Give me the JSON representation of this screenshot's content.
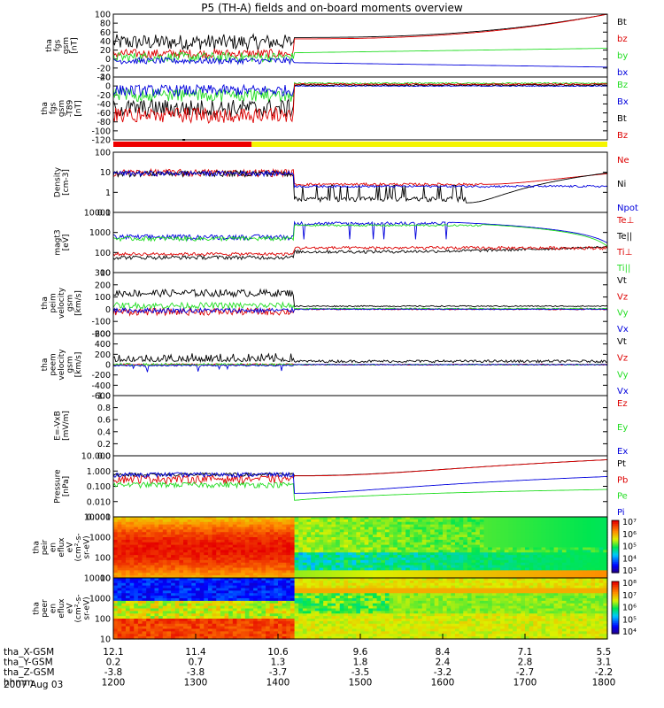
{
  "title": "P5 (TH-A) fields and on-board moments overview",
  "colors": {
    "black": "#000000",
    "red": "#dd0000",
    "green": "#22dd22",
    "blue": "#0000dd",
    "yellow": "#f5f500"
  },
  "chart_data": [
    {
      "type": "line",
      "id": "fgs",
      "ylabel": [
        "tha",
        "fgs",
        "gsm",
        "[nT]"
      ],
      "ylim": [
        -40,
        100
      ],
      "yticks": [
        "100",
        "80",
        "60",
        "40",
        "20",
        "0",
        "-20",
        "-40"
      ],
      "series": [
        {
          "name": "Bt",
          "color": "black"
        },
        {
          "name": "bz",
          "color": "red"
        },
        {
          "name": "by",
          "color": "green"
        },
        {
          "name": "bx",
          "color": "blue"
        }
      ]
    },
    {
      "type": "line",
      "id": "fgs_t89",
      "ylabel": [
        "tha",
        "fgs",
        "gsm",
        "-T89",
        "[nT]"
      ],
      "ylim": [
        -120,
        20
      ],
      "yticks": [
        "20",
        "0",
        "-20",
        "-40",
        "-60",
        "-80",
        "-100",
        "-120"
      ],
      "series": [
        {
          "name": "Bz",
          "color": "green"
        },
        {
          "name": "Bx",
          "color": "blue"
        },
        {
          "name": "Bt",
          "color": "black"
        },
        {
          "name": "Bz",
          "color": "red"
        }
      ]
    },
    {
      "type": "line",
      "id": "density",
      "ylabel": [
        "Density",
        "[cm-3]"
      ],
      "log": true,
      "ylim": [
        0.1,
        100
      ],
      "yticks": [
        "100",
        "10",
        "1",
        "0.1"
      ],
      "series": [
        {
          "name": "Ne",
          "color": "red"
        },
        {
          "name": "Ni",
          "color": "black"
        },
        {
          "name": "Npot",
          "color": "blue"
        }
      ]
    },
    {
      "type": "line",
      "id": "temp",
      "ylabel": [
        "magt3",
        "[eV]"
      ],
      "log": true,
      "ylim": [
        10,
        10000
      ],
      "yticks": [
        "10000",
        "1000",
        "100",
        "10"
      ],
      "series": [
        {
          "name": "Te⊥",
          "color": "red"
        },
        {
          "name": "Te||",
          "color": "black"
        },
        {
          "name": "Ti⊥",
          "color": "red"
        },
        {
          "name": "Ti||",
          "color": "green"
        }
      ]
    },
    {
      "type": "line",
      "id": "peim_v",
      "ylabel": [
        "tha",
        "peim",
        "velocity",
        "gsm",
        "[km/s]"
      ],
      "ylim": [
        -200,
        300
      ],
      "yticks": [
        "300",
        "200",
        "100",
        "0",
        "-100",
        "-200"
      ],
      "series": [
        {
          "name": "Vt",
          "color": "black"
        },
        {
          "name": "Vz",
          "color": "red"
        },
        {
          "name": "Vy",
          "color": "green"
        },
        {
          "name": "Vx",
          "color": "blue"
        }
      ]
    },
    {
      "type": "line",
      "id": "peem_v",
      "ylabel": [
        "tha",
        "peem",
        "velocity",
        "gsm",
        "[km/s]"
      ],
      "ylim": [
        -600,
        600
      ],
      "yticks": [
        "600",
        "400",
        "200",
        "0",
        "-200",
        "-400",
        "-600"
      ],
      "series": [
        {
          "name": "Vt",
          "color": "black"
        },
        {
          "name": "Vz",
          "color": "red"
        },
        {
          "name": "Vy",
          "color": "green"
        },
        {
          "name": "Vx",
          "color": "blue"
        }
      ]
    },
    {
      "type": "line",
      "id": "efield",
      "ylabel": [
        "E=-VxB",
        "[mV/m]"
      ],
      "ylim": [
        0,
        1
      ],
      "yticks": [
        "1.0",
        "0.8",
        "0.6",
        "0.4",
        "0.2",
        "0.0"
      ],
      "series": [
        {
          "name": "Ez",
          "color": "red"
        },
        {
          "name": "Ey",
          "color": "green"
        },
        {
          "name": "Ex",
          "color": "blue"
        }
      ]
    },
    {
      "type": "line",
      "id": "pressure",
      "ylabel": [
        "Pressure",
        "[nPa]"
      ],
      "log": true,
      "ylim": [
        0.001,
        10
      ],
      "yticks": [
        "10.000",
        "1.000",
        "0.100",
        "0.010",
        "0.001"
      ],
      "series": [
        {
          "name": "Pt",
          "color": "black"
        },
        {
          "name": "Pb",
          "color": "red"
        },
        {
          "name": "Pe",
          "color": "green"
        },
        {
          "name": "Pi",
          "color": "blue"
        }
      ]
    },
    {
      "type": "heatmap",
      "id": "peir",
      "ylabel": [
        "tha",
        "peir",
        "en",
        "eflux",
        "eV",
        "(cm²-s-",
        "sr-eV)"
      ],
      "yticks": [
        "10000",
        "1000",
        "100",
        "10"
      ],
      "colorbar": [
        "10⁷",
        "10⁶",
        "10⁵",
        "10⁴",
        "10³"
      ]
    },
    {
      "type": "heatmap",
      "id": "peer",
      "ylabel": [
        "tha",
        "peer",
        "en",
        "eflux",
        "eV",
        "(cm²-s-",
        "sr-eV)"
      ],
      "yticks": [
        "10000",
        "1000",
        "100",
        "10"
      ],
      "colorbar": [
        "10⁸",
        "10⁷",
        "10⁶",
        "10⁵",
        "10⁴"
      ]
    }
  ],
  "xaxis": {
    "rows": [
      {
        "label": "tha_X-GSM",
        "values": [
          "12.1",
          "11.4",
          "10.6",
          "9.6",
          "8.4",
          "7.1",
          "5.5"
        ]
      },
      {
        "label": "tha_Y-GSM",
        "values": [
          "0.2",
          "0.7",
          "1.3",
          "1.8",
          "2.4",
          "2.8",
          "3.1"
        ]
      },
      {
        "label": "tha_Z-GSM",
        "values": [
          "-3.8",
          "-3.8",
          "-3.7",
          "-3.5",
          "-3.2",
          "-2.7",
          "-2.2"
        ]
      },
      {
        "label": "hhmm",
        "values": [
          "1200",
          "1300",
          "1400",
          "1500",
          "1600",
          "1700",
          "1800"
        ]
      }
    ],
    "date": "2007 Aug 03"
  }
}
